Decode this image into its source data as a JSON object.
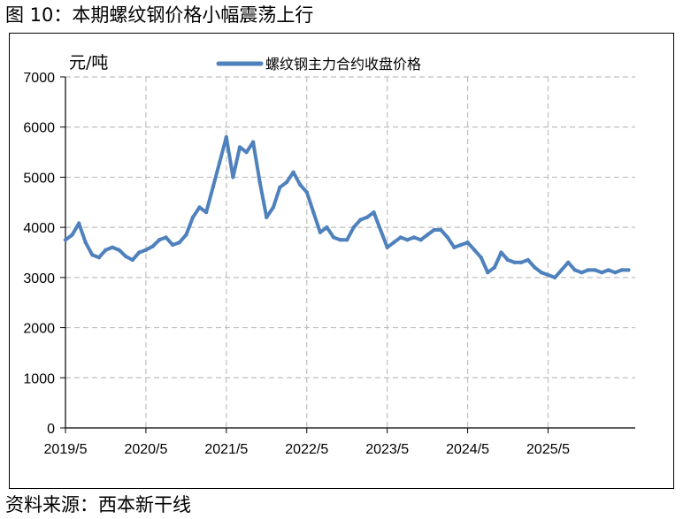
{
  "figure": {
    "title": "图 10：本期螺纹钢价格小幅震荡上行",
    "source": "资料来源：西本新干线"
  },
  "chart_data": {
    "type": "line",
    "title": "",
    "ylabel": "元/吨",
    "xlabel": "",
    "ylim": [
      0,
      7000
    ],
    "yticks": [
      0,
      1000,
      2000,
      3000,
      4000,
      5000,
      6000,
      7000
    ],
    "xlim": [
      "2019-05",
      "2026-06"
    ],
    "xticks": [
      "2019/5",
      "2020/5",
      "2021/5",
      "2022/5",
      "2023/5",
      "2024/5",
      "2025/5"
    ],
    "grid": "dashed",
    "legend": "top-center",
    "series_color": "#4F81BD",
    "series": [
      {
        "name": "螺纹钢主力合约收盘价格",
        "x": [
          "2019-05",
          "2019-06",
          "2019-07",
          "2019-08",
          "2019-09",
          "2019-10",
          "2019-11",
          "2019-12",
          "2020-01",
          "2020-02",
          "2020-03",
          "2020-04",
          "2020-05",
          "2020-06",
          "2020-07",
          "2020-08",
          "2020-09",
          "2020-10",
          "2020-11",
          "2020-12",
          "2021-01",
          "2021-02",
          "2021-03",
          "2021-04",
          "2021-05",
          "2021-06",
          "2021-07",
          "2021-08",
          "2021-09",
          "2021-10",
          "2021-11",
          "2021-12",
          "2022-01",
          "2022-02",
          "2022-03",
          "2022-04",
          "2022-05",
          "2022-06",
          "2022-07",
          "2022-08",
          "2022-09",
          "2022-10",
          "2022-11",
          "2022-12",
          "2023-01",
          "2023-02",
          "2023-03",
          "2023-04",
          "2023-05",
          "2023-06",
          "2023-07",
          "2023-08",
          "2023-09",
          "2023-10",
          "2023-11",
          "2023-12",
          "2024-01",
          "2024-02",
          "2024-03",
          "2024-04",
          "2024-05",
          "2024-06",
          "2024-07",
          "2024-08",
          "2024-09",
          "2024-10",
          "2024-11",
          "2024-12",
          "2025-01",
          "2025-02",
          "2025-03",
          "2025-04",
          "2025-05",
          "2025-06",
          "2025-07",
          "2025-08",
          "2025-09",
          "2025-10",
          "2025-11",
          "2025-12",
          "2026-01",
          "2026-02",
          "2026-03",
          "2026-04",
          "2026-05"
        ],
        "values": [
          3750,
          3850,
          4080,
          3700,
          3450,
          3400,
          3550,
          3600,
          3550,
          3420,
          3350,
          3500,
          3550,
          3620,
          3750,
          3800,
          3650,
          3700,
          3850,
          4200,
          4400,
          4300,
          4800,
          5300,
          5800,
          5000,
          5600,
          5500,
          5700,
          4900,
          4200,
          4400,
          4800,
          4900,
          5100,
          4850,
          4700,
          4300,
          3900,
          4000,
          3800,
          3750,
          3750,
          4000,
          4150,
          4200,
          4300,
          3950,
          3600,
          3700,
          3800,
          3750,
          3800,
          3750,
          3850,
          3950,
          3950,
          3800,
          3600,
          3650,
          3700,
          3550,
          3400,
          3100,
          3200,
          3500,
          3350,
          3300,
          3300,
          3350,
          3200,
          3100,
          3050,
          3000,
          3150,
          3300,
          3150,
          3100,
          3150,
          3150,
          3100,
          3150,
          3100,
          3150,
          3150
        ]
      }
    ]
  }
}
